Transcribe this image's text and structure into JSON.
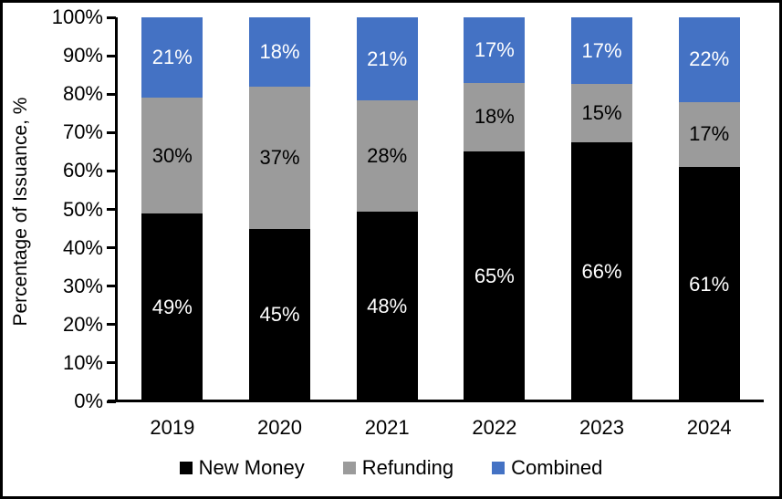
{
  "chart_data": {
    "type": "bar",
    "stacked": true,
    "title": "",
    "xlabel": "",
    "ylabel": "Percentage of Issuance, %",
    "ylim": [
      0,
      100
    ],
    "grid": false,
    "legend_position": "bottom",
    "categories": [
      "2019",
      "2020",
      "2021",
      "2022",
      "2023",
      "2024"
    ],
    "series": [
      {
        "name": "New Money",
        "color": "#000000",
        "label_color": "#ffffff",
        "values": [
          49,
          45,
          48,
          65,
          66,
          61
        ],
        "labels": [
          "49%",
          "45%",
          "48%",
          "65%",
          "66%",
          "61%"
        ]
      },
      {
        "name": "Refunding",
        "color": "#9B9B9B",
        "label_color": "#000000",
        "values": [
          30,
          37,
          28,
          18,
          15,
          17
        ],
        "labels": [
          "30%",
          "37%",
          "28%",
          "18%",
          "15%",
          "17%"
        ]
      },
      {
        "name": "Combined",
        "color": "#4472C4",
        "label_color": "#ffffff",
        "values": [
          21,
          18,
          21,
          17,
          17,
          22
        ],
        "labels": [
          "21%",
          "18%",
          "21%",
          "17%",
          "17%",
          "22%"
        ]
      }
    ],
    "y_tick_labels": [
      "0%",
      "10%",
      "20%",
      "30%",
      "40%",
      "50%",
      "60%",
      "70%",
      "80%",
      "90%",
      "100%"
    ],
    "axis_color": "#000000",
    "background_color": "#ffffff"
  }
}
